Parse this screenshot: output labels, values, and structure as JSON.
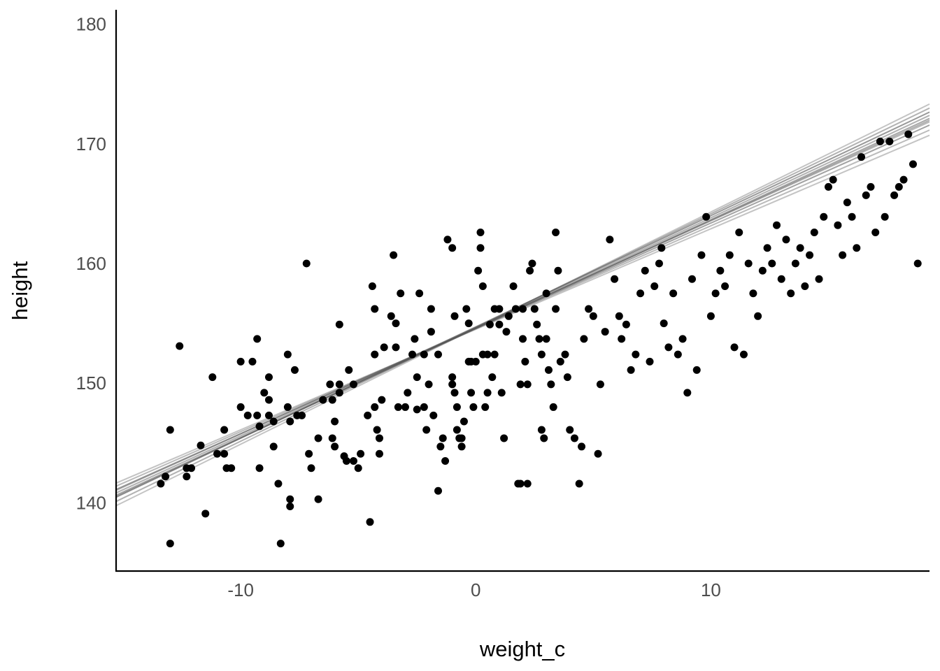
{
  "chart_data": {
    "type": "scatter",
    "title": "",
    "xlabel": "weight_c",
    "ylabel": "height",
    "xlim": [
      -15.3,
      19.3
    ],
    "ylim": [
      134.3,
      181.2
    ],
    "x_ticks": [
      -10,
      0,
      10
    ],
    "x_tick_labels": [
      "-10",
      "0",
      "10"
    ],
    "y_ticks": [
      140,
      150,
      160,
      170,
      180
    ],
    "y_tick_labels": [
      "140",
      "150",
      "160",
      "170",
      "180"
    ],
    "grid": false,
    "legend": "none",
    "colors": {
      "points": "#000000",
      "lines": "#555555"
    },
    "points": [
      [
        -13.4,
        141.6
      ],
      [
        -13.2,
        142.2
      ],
      [
        -13.0,
        146.1
      ],
      [
        -13.0,
        136.6
      ],
      [
        -12.6,
        153.1
      ],
      [
        -12.3,
        142.9
      ],
      [
        -12.3,
        142.2
      ],
      [
        -12.1,
        142.9
      ],
      [
        -11.7,
        144.8
      ],
      [
        -11.5,
        139.1
      ],
      [
        -11.2,
        150.5
      ],
      [
        -11.0,
        144.1
      ],
      [
        -10.7,
        146.1
      ],
      [
        -10.7,
        144.1
      ],
      [
        -10.6,
        142.9
      ],
      [
        -10.4,
        142.9
      ],
      [
        -10.0,
        151.8
      ],
      [
        -10.0,
        148.0
      ],
      [
        -9.7,
        147.3
      ],
      [
        -9.5,
        151.8
      ],
      [
        -9.3,
        153.7
      ],
      [
        -9.3,
        147.3
      ],
      [
        -9.2,
        146.4
      ],
      [
        -9.2,
        142.9
      ],
      [
        -9.0,
        149.2
      ],
      [
        -8.8,
        150.5
      ],
      [
        -8.8,
        148.6
      ],
      [
        -8.8,
        147.3
      ],
      [
        -8.6,
        146.8
      ],
      [
        -8.6,
        144.7
      ],
      [
        -8.4,
        141.6
      ],
      [
        -8.3,
        136.6
      ],
      [
        -8.0,
        152.4
      ],
      [
        -8.0,
        148.0
      ],
      [
        -7.9,
        146.8
      ],
      [
        -7.9,
        140.3
      ],
      [
        -7.9,
        139.7
      ],
      [
        -7.7,
        151.1
      ],
      [
        -7.6,
        147.3
      ],
      [
        -7.4,
        147.3
      ],
      [
        -7.2,
        160.0
      ],
      [
        -7.1,
        144.1
      ],
      [
        -7.0,
        142.9
      ],
      [
        -6.7,
        145.4
      ],
      [
        -6.7,
        140.3
      ],
      [
        -6.5,
        148.6
      ],
      [
        -6.2,
        149.9
      ],
      [
        -6.1,
        148.6
      ],
      [
        -6.1,
        145.4
      ],
      [
        -6.0,
        146.8
      ],
      [
        -6.0,
        144.7
      ],
      [
        -5.8,
        154.9
      ],
      [
        -5.8,
        149.9
      ],
      [
        -5.8,
        149.2
      ],
      [
        -5.6,
        143.9
      ],
      [
        -5.5,
        143.5
      ],
      [
        -5.4,
        151.1
      ],
      [
        -5.2,
        143.5
      ],
      [
        -5.2,
        149.9
      ],
      [
        -5.0,
        142.9
      ],
      [
        -4.9,
        144.1
      ],
      [
        -4.6,
        147.3
      ],
      [
        -4.5,
        138.4
      ],
      [
        -4.4,
        158.1
      ],
      [
        -4.3,
        156.2
      ],
      [
        -4.3,
        152.4
      ],
      [
        -4.3,
        148.0
      ],
      [
        -4.2,
        146.1
      ],
      [
        -4.1,
        145.4
      ],
      [
        -4.1,
        144.1
      ],
      [
        -4.0,
        148.6
      ],
      [
        -3.9,
        153.0
      ],
      [
        -3.6,
        155.6
      ],
      [
        -3.5,
        160.7
      ],
      [
        -3.4,
        155.0
      ],
      [
        -3.4,
        153.0
      ],
      [
        -3.3,
        148.0
      ],
      [
        -3.2,
        157.5
      ],
      [
        -3.0,
        148.0
      ],
      [
        -2.9,
        149.2
      ],
      [
        -2.7,
        152.4
      ],
      [
        -2.6,
        153.7
      ],
      [
        -2.5,
        150.5
      ],
      [
        -2.5,
        147.8
      ],
      [
        -2.4,
        157.5
      ],
      [
        -2.2,
        152.4
      ],
      [
        -2.2,
        148.0
      ],
      [
        -2.1,
        146.1
      ],
      [
        -2.0,
        149.9
      ],
      [
        -1.9,
        156.2
      ],
      [
        -1.9,
        154.3
      ],
      [
        -1.8,
        147.3
      ],
      [
        -1.6,
        152.4
      ],
      [
        -1.6,
        141.0
      ],
      [
        -1.5,
        144.7
      ],
      [
        -1.4,
        145.4
      ],
      [
        -1.3,
        143.5
      ],
      [
        -1.2,
        162.0
      ],
      [
        -1.0,
        161.3
      ],
      [
        -1.0,
        150.5
      ],
      [
        -1.0,
        149.9
      ],
      [
        -0.9,
        155.6
      ],
      [
        -0.9,
        149.2
      ],
      [
        -0.8,
        148.0
      ],
      [
        -0.8,
        146.1
      ],
      [
        -0.7,
        145.4
      ],
      [
        -0.6,
        145.4
      ],
      [
        -0.6,
        144.7
      ],
      [
        -0.5,
        146.8
      ],
      [
        -0.4,
        156.2
      ],
      [
        -0.3,
        155.0
      ],
      [
        -0.3,
        151.8
      ],
      [
        -0.2,
        151.8
      ],
      [
        -0.2,
        149.2
      ],
      [
        -0.1,
        148.0
      ],
      [
        0.0,
        151.8
      ],
      [
        0.1,
        159.4
      ],
      [
        0.2,
        162.6
      ],
      [
        0.2,
        161.3
      ],
      [
        0.3,
        158.1
      ],
      [
        0.3,
        152.4
      ],
      [
        0.4,
        148.0
      ],
      [
        0.5,
        152.4
      ],
      [
        0.5,
        149.2
      ],
      [
        0.6,
        154.9
      ],
      [
        0.7,
        150.5
      ],
      [
        0.8,
        156.2
      ],
      [
        0.8,
        152.4
      ],
      [
        1.0,
        156.2
      ],
      [
        1.0,
        154.9
      ],
      [
        1.1,
        149.2
      ],
      [
        1.2,
        145.4
      ],
      [
        1.3,
        154.3
      ],
      [
        1.4,
        155.6
      ],
      [
        1.6,
        158.1
      ],
      [
        1.7,
        156.2
      ],
      [
        1.8,
        141.6
      ],
      [
        1.9,
        149.9
      ],
      [
        1.9,
        141.6
      ],
      [
        2.0,
        156.2
      ],
      [
        2.0,
        153.7
      ],
      [
        2.1,
        151.8
      ],
      [
        2.2,
        149.9
      ],
      [
        2.2,
        141.6
      ],
      [
        2.3,
        159.4
      ],
      [
        2.4,
        160.0
      ],
      [
        2.5,
        156.2
      ],
      [
        2.6,
        154.9
      ],
      [
        2.7,
        153.7
      ],
      [
        2.8,
        152.4
      ],
      [
        2.8,
        146.1
      ],
      [
        2.9,
        145.4
      ],
      [
        3.0,
        157.5
      ],
      [
        3.0,
        153.7
      ],
      [
        3.1,
        151.1
      ],
      [
        3.2,
        149.9
      ],
      [
        3.3,
        148.0
      ],
      [
        3.4,
        162.6
      ],
      [
        3.4,
        156.2
      ],
      [
        3.5,
        159.4
      ],
      [
        3.6,
        151.8
      ],
      [
        3.8,
        152.4
      ],
      [
        3.9,
        150.5
      ],
      [
        4.0,
        146.1
      ],
      [
        4.2,
        145.4
      ],
      [
        4.4,
        141.6
      ],
      [
        4.5,
        144.7
      ],
      [
        4.6,
        153.7
      ],
      [
        4.8,
        156.2
      ],
      [
        5.0,
        155.6
      ],
      [
        5.2,
        144.1
      ],
      [
        5.3,
        149.9
      ],
      [
        5.5,
        154.3
      ],
      [
        5.7,
        162.0
      ],
      [
        5.9,
        158.7
      ],
      [
        6.1,
        155.6
      ],
      [
        6.2,
        153.7
      ],
      [
        6.4,
        154.9
      ],
      [
        6.6,
        151.1
      ],
      [
        6.8,
        152.4
      ],
      [
        7.0,
        157.5
      ],
      [
        7.2,
        159.4
      ],
      [
        7.4,
        151.8
      ],
      [
        7.6,
        158.1
      ],
      [
        7.8,
        160.0
      ],
      [
        7.9,
        161.3
      ],
      [
        8.0,
        155.0
      ],
      [
        8.2,
        153.0
      ],
      [
        8.4,
        157.5
      ],
      [
        8.6,
        152.4
      ],
      [
        8.8,
        153.7
      ],
      [
        9.0,
        149.2
      ],
      [
        9.2,
        158.7
      ],
      [
        9.4,
        151.1
      ],
      [
        9.6,
        160.7
      ],
      [
        9.8,
        163.9
      ],
      [
        10.0,
        155.6
      ],
      [
        10.2,
        157.5
      ],
      [
        10.4,
        159.4
      ],
      [
        10.6,
        158.1
      ],
      [
        10.8,
        160.7
      ],
      [
        11.0,
        153.0
      ],
      [
        11.2,
        162.6
      ],
      [
        11.4,
        152.4
      ],
      [
        11.6,
        160.0
      ],
      [
        11.8,
        157.5
      ],
      [
        12.0,
        155.6
      ],
      [
        12.2,
        159.4
      ],
      [
        12.4,
        161.3
      ],
      [
        12.6,
        160.0
      ],
      [
        12.8,
        163.2
      ],
      [
        13.0,
        158.7
      ],
      [
        13.2,
        162.0
      ],
      [
        13.4,
        157.5
      ],
      [
        13.6,
        160.0
      ],
      [
        13.8,
        161.3
      ],
      [
        14.0,
        158.1
      ],
      [
        14.2,
        160.7
      ],
      [
        14.4,
        162.6
      ],
      [
        14.6,
        158.7
      ],
      [
        14.8,
        163.9
      ],
      [
        15.0,
        166.4
      ],
      [
        15.2,
        167.0
      ],
      [
        15.4,
        163.2
      ],
      [
        15.6,
        160.7
      ],
      [
        15.8,
        165.1
      ],
      [
        16.0,
        163.9
      ],
      [
        16.2,
        161.3
      ],
      [
        16.4,
        168.9
      ],
      [
        16.6,
        165.7
      ],
      [
        16.8,
        166.4
      ],
      [
        17.0,
        162.6
      ],
      [
        17.2,
        170.2
      ],
      [
        17.4,
        163.9
      ],
      [
        17.6,
        170.2
      ],
      [
        17.8,
        165.7
      ],
      [
        18.0,
        166.4
      ],
      [
        18.2,
        167.0
      ],
      [
        18.4,
        170.8
      ],
      [
        18.6,
        168.3
      ],
      [
        18.8,
        160.0
      ]
    ],
    "lines": [
      {
        "intercept": 154.6,
        "slope": 0.9,
        "opacity": 0.45
      },
      {
        "intercept": 154.58,
        "slope": 0.88,
        "opacity": 0.55
      },
      {
        "intercept": 154.62,
        "slope": 0.92,
        "opacity": 0.45
      },
      {
        "intercept": 154.55,
        "slope": 0.86,
        "opacity": 0.4
      },
      {
        "intercept": 154.65,
        "slope": 0.95,
        "opacity": 0.45
      },
      {
        "intercept": 154.5,
        "slope": 0.84,
        "opacity": 0.35
      },
      {
        "intercept": 154.7,
        "slope": 0.93,
        "opacity": 0.6
      },
      {
        "intercept": 154.56,
        "slope": 0.91,
        "opacity": 0.5
      },
      {
        "intercept": 154.66,
        "slope": 0.89,
        "opacity": 0.4
      },
      {
        "intercept": 154.6,
        "slope": 0.97,
        "opacity": 0.35
      }
    ]
  }
}
